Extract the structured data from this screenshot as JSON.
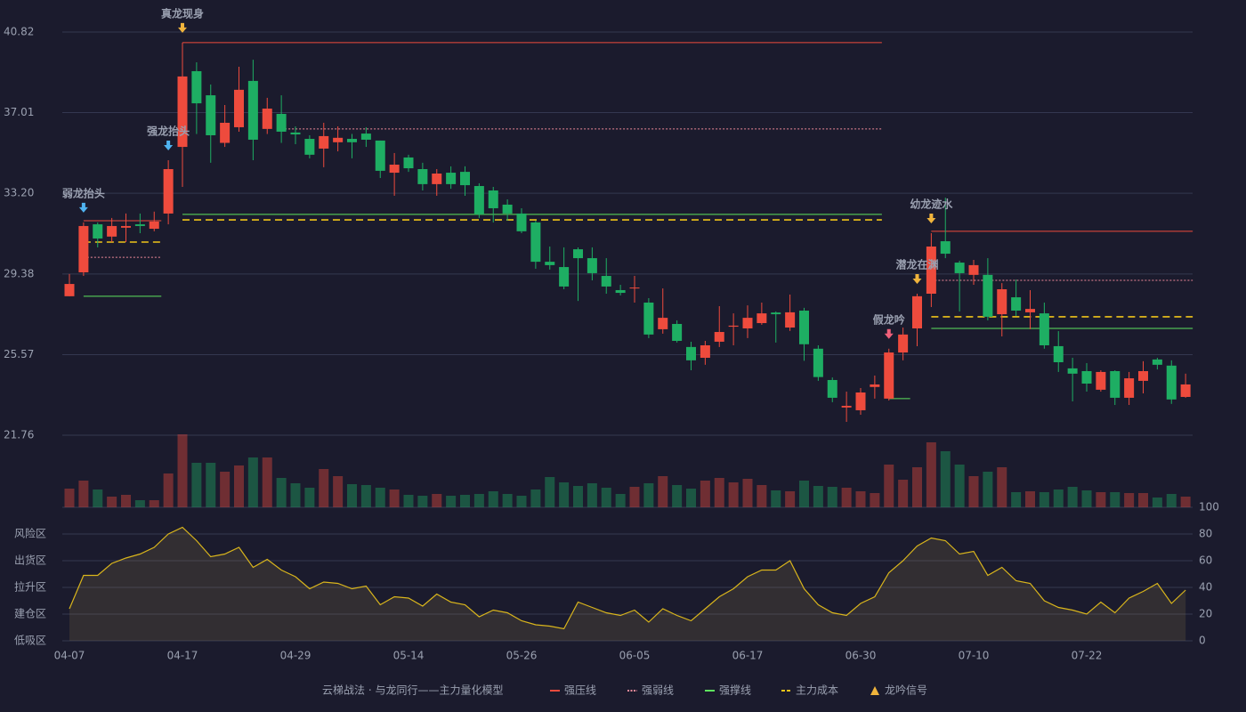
{
  "chart_data": {
    "type": "candlestick",
    "categories": [
      "04-07",
      null,
      null,
      null,
      null,
      null,
      null,
      null,
      "04-17",
      null,
      null,
      null,
      null,
      null,
      null,
      null,
      "04-29",
      null,
      null,
      null,
      null,
      null,
      null,
      null,
      "05-14",
      null,
      null,
      null,
      null,
      null,
      null,
      null,
      "05-26",
      null,
      null,
      null,
      null,
      null,
      null,
      null,
      "06-05",
      null,
      null,
      null,
      null,
      null,
      null,
      null,
      "06-17",
      null,
      null,
      null,
      null,
      null,
      null,
      null,
      "06-30",
      null,
      null,
      null,
      null,
      null,
      null,
      null,
      "07-10",
      null,
      null,
      null,
      null,
      null,
      null,
      null,
      "07-22",
      null,
      null,
      null,
      null,
      null,
      null,
      null
    ],
    "open": [
      28.33,
      29.46,
      31.73,
      31.15,
      31.57,
      31.73,
      31.52,
      32.24,
      35.39,
      38.97,
      37.83,
      35.58,
      36.32,
      38.51,
      36.24,
      36.95,
      36.07,
      35.77,
      35.31,
      35.61,
      35.77,
      36.02,
      35.69,
      34.17,
      34.89,
      34.34,
      33.63,
      34.17,
      34.21,
      33.54,
      33.33,
      32.66,
      32.24,
      31.82,
      29.96,
      29.71,
      30.55,
      30.13,
      29.29,
      28.62,
      28.7,
      28.03,
      26.77,
      27.02,
      25.93,
      25.42,
      26.18,
      26.89,
      26.81,
      27.06,
      27.56,
      26.85,
      27.65,
      25.85,
      24.37,
      23.07,
      22.94,
      24.04,
      23.49,
      25.67,
      26.81,
      28.45,
      30.93,
      29.92,
      29.34,
      29.34,
      27.48,
      28.28,
      27.57,
      27.52,
      25.97,
      24.92,
      24.79,
      23.91,
      24.79,
      23.53,
      24.33,
      25.34,
      25.05,
      23.57
    ],
    "close": [
      28.91,
      31.65,
      31.06,
      31.65,
      31.65,
      31.65,
      31.86,
      34.34,
      38.72,
      37.45,
      35.94,
      36.53,
      38.09,
      35.73,
      37.2,
      36.11,
      35.98,
      35.02,
      35.9,
      35.82,
      35.61,
      35.73,
      34.26,
      34.55,
      34.38,
      33.63,
      34.13,
      33.63,
      33.58,
      32.2,
      32.49,
      32.24,
      31.4,
      29.96,
      29.8,
      28.79,
      30.13,
      29.42,
      28.79,
      28.49,
      28.74,
      26.52,
      27.31,
      26.22,
      25.3,
      26.01,
      26.64,
      26.94,
      27.31,
      27.52,
      27.48,
      27.57,
      26.06,
      24.51,
      23.53,
      23.15,
      23.78,
      24.16,
      25.67,
      26.52,
      28.33,
      30.68,
      30.34,
      29.42,
      29.8,
      27.36,
      28.66,
      27.65,
      27.73,
      26.01,
      25.21,
      24.67,
      24.2,
      24.75,
      23.53,
      24.45,
      24.79,
      25.09,
      23.45,
      24.16
    ],
    "high": [
      29.38,
      31.82,
      31.82,
      32.03,
      32.24,
      32.24,
      32.33,
      34.76,
      40.32,
      39.39,
      38.34,
      37.37,
      39.18,
      39.51,
      37.71,
      37.83,
      36.36,
      35.94,
      36.53,
      36.36,
      36.0,
      36.32,
      35.69,
      35.1,
      35.02,
      34.64,
      34.34,
      34.47,
      34.47,
      33.67,
      33.5,
      32.91,
      32.49,
      31.9,
      30.68,
      30.64,
      30.64,
      30.64,
      30.13,
      28.87,
      29.29,
      28.24,
      28.7,
      27.19,
      26.18,
      26.22,
      27.86,
      27.52,
      27.9,
      28.03,
      27.61,
      28.41,
      27.78,
      26.01,
      24.49,
      23.82,
      23.99,
      24.58,
      25.85,
      26.85,
      28.45,
      31.31,
      32.99,
      30.01,
      30.05,
      30.13,
      28.95,
      29.12,
      28.62,
      28.03,
      26.68,
      25.42,
      25.17,
      24.83,
      24.83,
      24.75,
      25.26,
      25.42,
      25.3,
      24.67
    ],
    "low": [
      28.33,
      29.29,
      30.64,
      30.89,
      30.89,
      31.31,
      31.4,
      31.73,
      33.5,
      36.0,
      34.64,
      35.39,
      36.11,
      34.76,
      36.0,
      35.58,
      35.52,
      34.85,
      34.43,
      35.18,
      34.85,
      35.39,
      33.92,
      33.08,
      34.21,
      33.33,
      33.08,
      33.41,
      33.08,
      32.03,
      31.82,
      31.9,
      31.31,
      29.63,
      29.59,
      28.66,
      28.11,
      29.08,
      28.45,
      28.37,
      28.03,
      26.35,
      26.56,
      26.14,
      24.83,
      25.09,
      25.93,
      26.01,
      26.35,
      26.98,
      26.14,
      26.69,
      25.28,
      24.33,
      23.32,
      22.39,
      22.73,
      23.49,
      23.4,
      25.3,
      25.97,
      27.82,
      30.13,
      27.61,
      28.87,
      27.19,
      26.43,
      27.4,
      26.77,
      25.85,
      24.75,
      23.36,
      23.82,
      23.82,
      23.19,
      23.19,
      23.74,
      24.87,
      23.24,
      23.53
    ],
    "volume": [
      21,
      30,
      20,
      12,
      14,
      8,
      8,
      38,
      82,
      50,
      50,
      40,
      47,
      56,
      56,
      33,
      27,
      22,
      43,
      35,
      26,
      25,
      22,
      20,
      14,
      13,
      15,
      13,
      14,
      15,
      18,
      15,
      13,
      20,
      34,
      28,
      24,
      27,
      22,
      15,
      23,
      27,
      35,
      25,
      21,
      30,
      33,
      28,
      32,
      25,
      19,
      18,
      30,
      24,
      23,
      22,
      18,
      16,
      48,
      31,
      45,
      73,
      63,
      48,
      35,
      40,
      45,
      17,
      18,
      17,
      20,
      23,
      19,
      17,
      17,
      16,
      16,
      11,
      15,
      12
    ],
    "ylim": [
      21.76,
      40.82
    ],
    "yticks": [
      21.76,
      25.57,
      {
        "value": 29.38,
        "label": "29.38"
      },
      {
        "value": 33.2,
        "label": "33.20"
      },
      37.01,
      40.82
    ],
    "grid": true,
    "colors": {
      "up": "#ee4b3d",
      "down": "#1eae63"
    },
    "legend": {
      "title": "云梯战法 · 与龙同行——主力量化模型",
      "items": [
        {
          "name": "强压线",
          "color": "#ee4b3d",
          "style": "solid"
        },
        {
          "name": "强弱线",
          "color": "#f08a9a",
          "style": "dotted"
        },
        {
          "name": "强撑线",
          "color": "#5ee35e",
          "style": "solid"
        },
        {
          "name": "主力成本",
          "color": "#f0c419",
          "style": "dashed"
        },
        {
          "name": "龙吟信号",
          "color": "#f0b43c",
          "style": "triangle"
        }
      ]
    },
    "levels": [
      {
        "item": 0,
        "from": 1,
        "to": 6,
        "value": 31.9
      },
      {
        "item": 0,
        "from": 8,
        "to": 57,
        "value": 40.32
      },
      {
        "item": 0,
        "from": 61,
        "to": 79,
        "value": 31.4
      },
      {
        "item": 1,
        "from": 1,
        "to": 6,
        "value": 30.17
      },
      {
        "item": 1,
        "from": 15,
        "to": 57,
        "value": 36.24
      },
      {
        "item": 1,
        "from": 61,
        "to": 79,
        "value": 29.08
      },
      {
        "item": 2,
        "from": 1,
        "to": 6,
        "value": 28.33
      },
      {
        "item": 2,
        "from": 8,
        "to": 57,
        "value": 32.2
      },
      {
        "item": 2,
        "from": 58,
        "to": 59,
        "value": 23.49
      },
      {
        "item": 2,
        "from": 61,
        "to": 79,
        "value": 26.81
      },
      {
        "item": 3,
        "from": 1,
        "to": 6,
        "value": 30.89
      },
      {
        "item": 3,
        "from": 8,
        "to": 57,
        "value": 31.94
      },
      {
        "item": 3,
        "from": 61,
        "to": 79,
        "value": 27.36
      }
    ],
    "signals": [
      {
        "text": "弱龙抬头",
        "index": 1,
        "color": "#4fb3f0"
      },
      {
        "text": "强龙抬头",
        "index": 7,
        "color": "#4fb3f0"
      },
      {
        "text": "真龙现身",
        "index": 8,
        "color": "#f0b43c"
      },
      {
        "text": "假龙吟",
        "index": 58,
        "color": "#f0607a"
      },
      {
        "text": "潜龙在渊",
        "index": 60,
        "color": "#f0b43c"
      },
      {
        "text": "幼龙迹水",
        "index": 61,
        "color": "#f0b43c"
      }
    ],
    "indicator": {
      "values": [
        24,
        49,
        49,
        58,
        62,
        65,
        70,
        80,
        85,
        75,
        63,
        65,
        70,
        55,
        61,
        53,
        48,
        39,
        44,
        43,
        39,
        41,
        27,
        33,
        32,
        26,
        35,
        29,
        27,
        18,
        23,
        21,
        15,
        12,
        11,
        9,
        29,
        25,
        21,
        19,
        23,
        14,
        24,
        19,
        15,
        24,
        33,
        39,
        48,
        53,
        53,
        60,
        39,
        27,
        21,
        19,
        28,
        33,
        51,
        60,
        71,
        77,
        75,
        65,
        67,
        49,
        55,
        45,
        43,
        30,
        25,
        23,
        20,
        29,
        21,
        32,
        37,
        43,
        28,
        38
      ],
      "color": "#d9b51c",
      "ylim": [
        0,
        100
      ],
      "yticks": [
        0,
        20,
        40,
        60,
        80,
        100
      ],
      "tick_colors": [
        "#f04848",
        "#f05a5a",
        "#4c9bf0",
        "#e040fb",
        "#e8a33c",
        "#5ee35e"
      ],
      "zones": [
        {
          "label": "风险区",
          "value": 80,
          "color": "#e8a33c"
        },
        {
          "label": "出货区",
          "value": 60,
          "color": "#e040fb"
        },
        {
          "label": "拉升区",
          "value": 40,
          "color": "#4c9bf0"
        },
        {
          "label": "建仓区",
          "value": 20,
          "color": "#f05a5a"
        },
        {
          "label": "低吸区",
          "value": 0,
          "color": "#f04848"
        }
      ]
    }
  }
}
